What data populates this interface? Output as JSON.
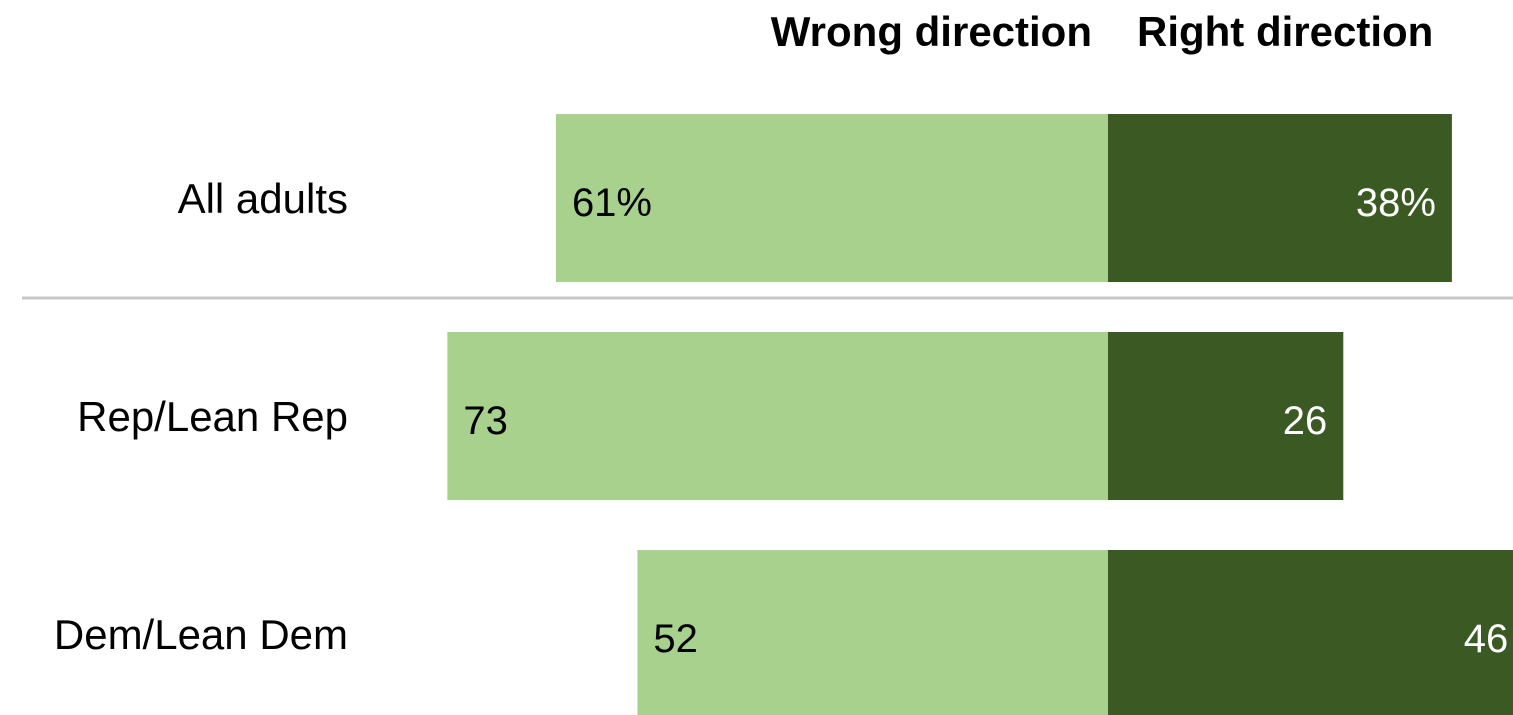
{
  "chart_data": {
    "type": "bar",
    "orientation": "horizontal-diverging",
    "series": [
      {
        "name": "Wrong direction",
        "values": [
          61,
          73,
          52
        ],
        "color": "#a8d18d",
        "label_color": "#000000"
      },
      {
        "name": "Right direction",
        "values": [
          38,
          26,
          46
        ],
        "color": "#3b5a23",
        "label_color": "#ffffff"
      }
    ],
    "categories": [
      "All adults",
      "Rep/Lean Rep",
      "Dem/Lean Dem"
    ],
    "data_labels": [
      [
        "61%",
        "73",
        "52"
      ],
      [
        "38%",
        "26",
        "46"
      ]
    ],
    "separator_after_category": 0,
    "separator_color": "#c8c8c8"
  }
}
